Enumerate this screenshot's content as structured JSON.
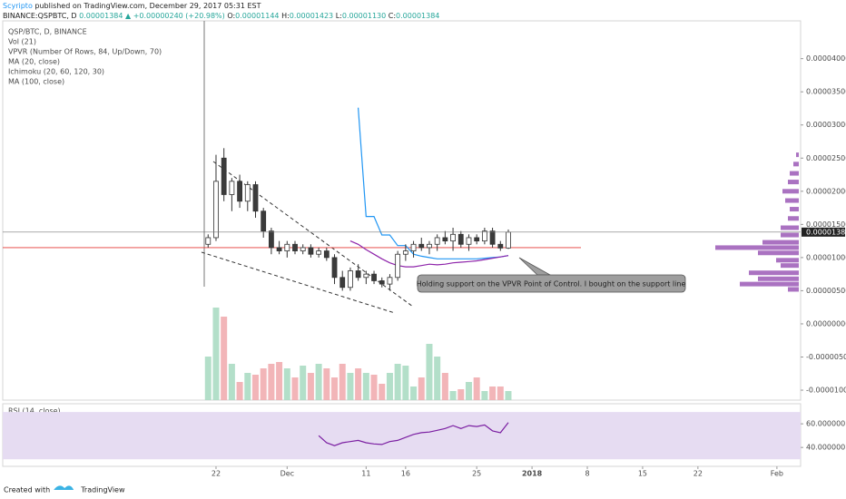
{
  "header": {
    "author": "Scyripto",
    "published": "published on TradingView.com, December 29, 2017 05:31 EST",
    "symbol": "BINANCE:QSPBTC, D",
    "last": "0.00001384",
    "change": "▲ +0.00000240 (+20.98%)",
    "ohlc": [
      {
        "label": "O:",
        "value": "0.00001144"
      },
      {
        "label": "H:",
        "value": "0.00001423"
      },
      {
        "label": "L:",
        "value": "0.00001130"
      },
      {
        "label": "C:",
        "value": "0.00001384"
      }
    ],
    "indicators": [
      "QSP/BTC, D, BINANCE",
      "Vol (21)",
      "VPVR (Number Of Rows, 84, Up/Down, 70)",
      "MA (20, close)",
      "Ichimoku (20, 60, 120, 30)",
      "MA (100, close)"
    ]
  },
  "annotation": "Holding support on the VPVR Point of Control. I bought on the support line",
  "footer": {
    "created": "Created with",
    "brand": "TradingView"
  },
  "chart_data": [
    {
      "type": "candlestick",
      "x": [
        "2017-11-21",
        "2017-11-22",
        "2017-11-23",
        "2017-11-24",
        "2017-11-25",
        "2017-11-26",
        "2017-11-27",
        "2017-11-28",
        "2017-11-29",
        "2017-11-30",
        "2017-12-01",
        "2017-12-02",
        "2017-12-03",
        "2017-12-04",
        "2017-12-05",
        "2017-12-06",
        "2017-12-07",
        "2017-12-08",
        "2017-12-09",
        "2017-12-10",
        "2017-12-11",
        "2017-12-12",
        "2017-12-13",
        "2017-12-14",
        "2017-12-15",
        "2017-12-16",
        "2017-12-17",
        "2017-12-18",
        "2017-12-19",
        "2017-12-20",
        "2017-12-21",
        "2017-12-22",
        "2017-12-23",
        "2017-12-24",
        "2017-12-25",
        "2017-12-26",
        "2017-12-27",
        "2017-12-28",
        "2017-12-29"
      ],
      "open": [
        1.2e-05,
        1.3e-05,
        2.5e-05,
        1.95e-05,
        2.15e-05,
        1.85e-05,
        2.1e-05,
        1.7e-05,
        1.4e-05,
        1.15e-05,
        1.1e-05,
        1.2e-05,
        1.1e-05,
        1.15e-05,
        1.05e-05,
        1.1e-05,
        1e-05,
        7e-06,
        5.5e-06,
        8e-06,
        7e-06,
        7.5e-06,
        6.5e-06,
        6e-06,
        7e-06,
        1.05e-05,
        1.1e-05,
        1.2e-05,
        1.15e-05,
        1.2e-05,
        1.3e-05,
        1.25e-05,
        1.35e-05,
        1.2e-05,
        1.3e-05,
        1.25e-05,
        1.4e-05,
        1.2e-05,
        1.144e-05
      ],
      "high": [
        1.35e-05,
        2.55e-05,
        2.65e-05,
        2.2e-05,
        2.25e-05,
        2.15e-05,
        2.15e-05,
        1.75e-05,
        1.45e-05,
        1.25e-05,
        1.25e-05,
        1.25e-05,
        1.2e-05,
        1.2e-05,
        1.15e-05,
        1.15e-05,
        1.05e-05,
        8e-06,
        8.5e-06,
        9e-06,
        8e-06,
        8e-06,
        7e-06,
        7.5e-06,
        1.1e-05,
        1.2e-05,
        1.25e-05,
        1.3e-05,
        1.25e-05,
        1.35e-05,
        1.4e-05,
        1.45e-05,
        1.4e-05,
        1.35e-05,
        1.35e-05,
        1.45e-05,
        1.45e-05,
        1.25e-05,
        1.423e-05
      ],
      "low": [
        1.15e-05,
        1.25e-05,
        1.85e-05,
        1.7e-05,
        1.75e-05,
        1.7e-05,
        1.6e-05,
        1.3e-05,
        1.05e-05,
        1.05e-05,
        1e-05,
        1.05e-05,
        1.05e-05,
        1e-05,
        1e-05,
        9.5e-06,
        6e-06,
        5e-06,
        5e-06,
        6.5e-06,
        6e-06,
        6e-06,
        5.5e-06,
        5e-06,
        6.5e-06,
        9.5e-06,
        1e-05,
        1.1e-05,
        1.05e-05,
        1.1e-05,
        1.2e-05,
        1.1e-05,
        1.15e-05,
        1.1e-05,
        1.2e-05,
        1.2e-05,
        1.15e-05,
        1.1e-05,
        1.13e-05
      ],
      "close": [
        1.3e-05,
        2.15e-05,
        1.95e-05,
        2.15e-05,
        1.85e-05,
        2.1e-05,
        1.7e-05,
        1.4e-05,
        1.15e-05,
        1.1e-05,
        1.2e-05,
        1.1e-05,
        1.15e-05,
        1.05e-05,
        1.1e-05,
        1e-05,
        7e-06,
        5.5e-06,
        8e-06,
        7e-06,
        7.5e-06,
        6.5e-06,
        6e-06,
        7e-06,
        1.05e-05,
        1.1e-05,
        1.2e-05,
        1.15e-05,
        1.2e-05,
        1.3e-05,
        1.25e-05,
        1.35e-05,
        1.2e-05,
        1.3e-05,
        1.25e-05,
        1.4e-05,
        1.2e-05,
        1.144e-05,
        1.384e-05
      ],
      "last_label": "0.00001384",
      "up_color": "#ffffff",
      "down_color": "#3b3b3b",
      "series": [
        {
          "color": "#2196f3",
          "values": [
            null,
            null,
            null,
            null,
            null,
            null,
            null,
            null,
            null,
            null,
            null,
            null,
            null,
            null,
            null,
            null,
            null,
            null,
            null,
            3.26e-05,
            1.62e-05,
            1.62e-05,
            1.34e-05,
            1.34e-05,
            1.18e-05,
            1.18e-05,
            1.05e-05,
            1.02e-05,
            1e-05,
            9.8e-06,
            9.8e-06,
            9.8e-06,
            9.8e-06,
            9.8e-06,
            9.8e-06,
            9.9e-06,
            1e-05,
            1.01e-05,
            1.03e-05
          ]
        },
        {
          "color": "#8e24aa",
          "values": [
            null,
            null,
            null,
            null,
            null,
            null,
            null,
            null,
            null,
            null,
            null,
            null,
            null,
            null,
            null,
            null,
            null,
            null,
            1.25e-05,
            1.2e-05,
            1.12e-05,
            1.05e-05,
            9.8e-06,
            9.2e-06,
            8.8e-06,
            8.6e-06,
            8.6e-06,
            8.8e-06,
            9e-06,
            8.9e-06,
            9e-06,
            9.2e-06,
            9.3e-06,
            9.4e-06,
            9.5e-06,
            9.7e-06,
            9.9e-06,
            1.01e-05,
            1.03e-05
          ]
        }
      ],
      "xlim": [
        "2017-10-26",
        "2018-02-04"
      ],
      "xticks": [
        {
          "value": "2017-11-22",
          "label": "22"
        },
        {
          "value": "2017-12-01",
          "label": "Dec"
        },
        {
          "value": "2017-12-11",
          "label": "11"
        },
        {
          "value": "2017-12-16",
          "label": "16"
        },
        {
          "value": "2017-12-25",
          "label": "25"
        },
        {
          "value": "2018-01-01",
          "label": "2018"
        },
        {
          "value": "2018-01-08",
          "label": "8"
        },
        {
          "value": "2018-01-15",
          "label": "15"
        },
        {
          "value": "2018-01-22",
          "label": "22"
        },
        {
          "value": "2018-02-01",
          "label": "Feb"
        }
      ],
      "ylim": [
        -1.15e-05,
        4.57e-05
      ],
      "yticks": [
        {
          "value": 4e-05,
          "label": "0.00004000"
        },
        {
          "value": 3.5e-05,
          "label": "0.00003500"
        },
        {
          "value": 3e-05,
          "label": "0.00003000"
        },
        {
          "value": 2.5e-05,
          "label": "0.00002500"
        },
        {
          "value": 2e-05,
          "label": "0.00002000"
        },
        {
          "value": 1.5e-05,
          "label": "0.00001500"
        },
        {
          "value": 1e-05,
          "label": "0.00001000"
        },
        {
          "value": 5e-06,
          "label": "0.00000500"
        },
        {
          "value": 0,
          "label": "0.00000000"
        },
        {
          "value": -5e-06,
          "label": "-0.00000500"
        },
        {
          "value": -1e-05,
          "label": "-0.00001000"
        }
      ]
    },
    {
      "type": "bar",
      "values": [
        48,
        102,
        92,
        40,
        20,
        30,
        28,
        35,
        40,
        42,
        35,
        25,
        38,
        30,
        40,
        35,
        25,
        40,
        30,
        35,
        30,
        28,
        18,
        30,
        40,
        38,
        15,
        25,
        62,
        48,
        30,
        10,
        12,
        20,
        25,
        10,
        15,
        15,
        10
      ],
      "up_color": "#a6d9c0",
      "down_color": "#f0a8ac"
    },
    {
      "type": "line",
      "title": "RSI (14, close)",
      "color": "#7b1fa2",
      "band": [
        30,
        70
      ],
      "band_color": "#e6dcf2",
      "values": [
        null,
        null,
        null,
        null,
        null,
        null,
        null,
        null,
        null,
        null,
        null,
        null,
        null,
        null,
        50,
        44,
        41.5,
        44,
        45,
        46,
        44,
        43,
        42.5,
        45,
        46,
        48.5,
        51,
        52.5,
        53,
        54.5,
        56,
        58.5,
        56,
        58.5,
        57.7,
        59,
        54,
        52.5,
        61
      ],
      "ylim": [
        24,
        77
      ],
      "yticks": [
        {
          "value": 60,
          "label": "60.000000"
        },
        {
          "value": 40,
          "label": "40.000000"
        }
      ]
    },
    {
      "type": "vpvr",
      "prices": [
        2.55e-05,
        2.41e-05,
        2.27e-05,
        2.14e-05,
        2e-05,
        1.86e-05,
        1.73e-05,
        1.59e-05,
        1.45e-05,
        1.34e-05,
        1.23e-05,
        1.15e-05,
        1.07e-05,
        9.6e-06,
        8.8e-06,
        7.7e-06,
        6.8e-06,
        6e-06,
        5.2e-06
      ],
      "values": [
        3,
        6,
        10,
        12,
        18,
        15,
        10,
        12,
        20,
        20,
        40,
        92,
        45,
        25,
        20,
        55,
        45,
        65,
        12
      ],
      "color": "#9b59b6",
      "poc_color": "#e53935"
    }
  ]
}
